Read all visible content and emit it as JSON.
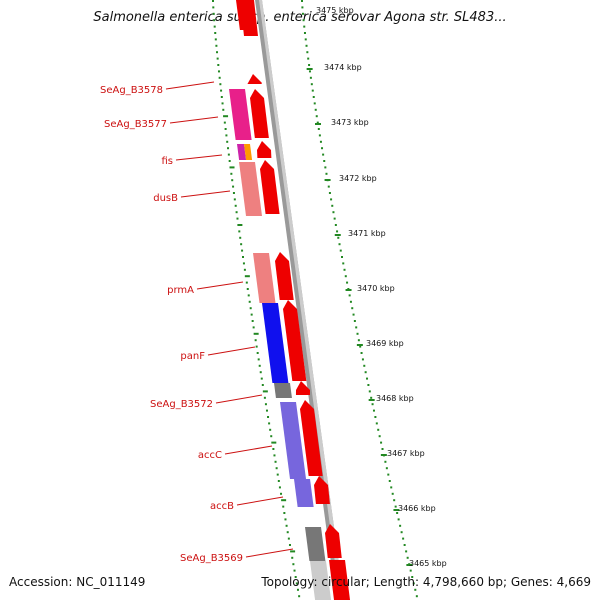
{
  "title": "Salmonella enterica subsp. enterica serovar Agona str. SL483...",
  "footer": {
    "accession": "Accession: NC_011149",
    "topology": "Topology: circular; Length: 4,798,660 bp; Genes: 4,669"
  },
  "colors": {
    "forward_cds": "#ee0000",
    "pink": "#e8208a",
    "orange": "#ff9900",
    "magenta": "#cc22aa",
    "salmon": "#ee8080",
    "blue": "#1010ee",
    "lavender": "#7766dd",
    "gray": "#777777",
    "tick": "#228822",
    "backbone": "#888888"
  },
  "kbp_labels": [
    "3475 kbp",
    "3474 kbp",
    "3473 kbp",
    "3472 kbp",
    "3471 kbp",
    "3470 kbp",
    "3469 kbp",
    "3468 kbp",
    "3467 kbp",
    "3466 kbp",
    "3465 kbp"
  ],
  "genes": [
    "SeAg_B3578",
    "SeAg_B3577",
    "fis",
    "dusB",
    "prmA",
    "panF",
    "SeAg_B3572",
    "accC",
    "accB",
    "SeAg_B3569"
  ]
}
